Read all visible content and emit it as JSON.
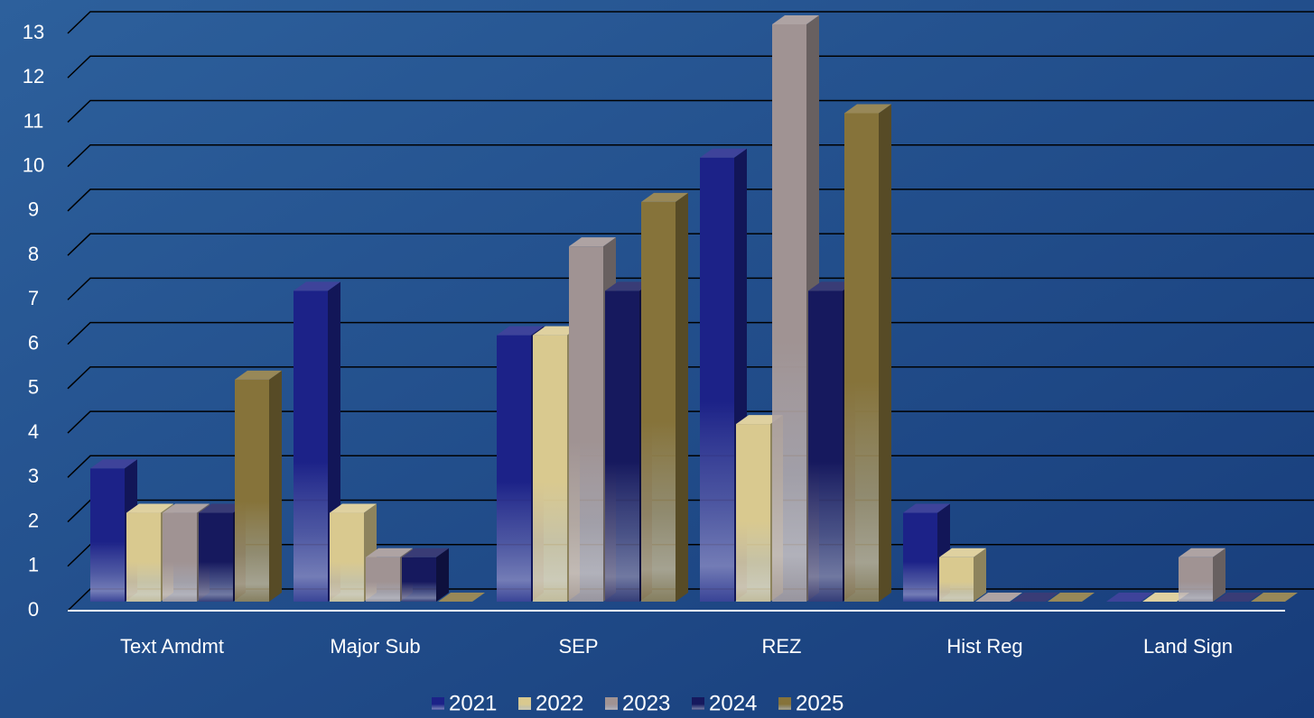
{
  "chart_data": {
    "type": "bar3d",
    "categories": [
      "Text Amdmt",
      "Major Sub",
      "SEP",
      "REZ",
      "Hist Reg",
      "Land Sign"
    ],
    "series": [
      {
        "name": "2021",
        "color": "#1c2288",
        "values": [
          3,
          7,
          6,
          10,
          2,
          0
        ]
      },
      {
        "name": "2022",
        "color": "#d9c98f",
        "values": [
          2,
          2,
          6,
          4,
          1,
          0
        ]
      },
      {
        "name": "2023",
        "color": "#a09393",
        "values": [
          2,
          1,
          8,
          13,
          0,
          1
        ]
      },
      {
        "name": "2024",
        "color": "#16195e",
        "values": [
          2,
          1,
          7,
          7,
          0,
          0
        ]
      },
      {
        "name": "2025",
        "color": "#86733a",
        "values": [
          5,
          0,
          9,
          11,
          0,
          0
        ]
      }
    ],
    "ylim": [
      0,
      13
    ],
    "yticks": [
      0,
      1,
      2,
      3,
      4,
      5,
      6,
      7,
      8,
      9,
      10,
      11,
      12,
      13
    ],
    "grid": true,
    "legend": "bottom"
  }
}
